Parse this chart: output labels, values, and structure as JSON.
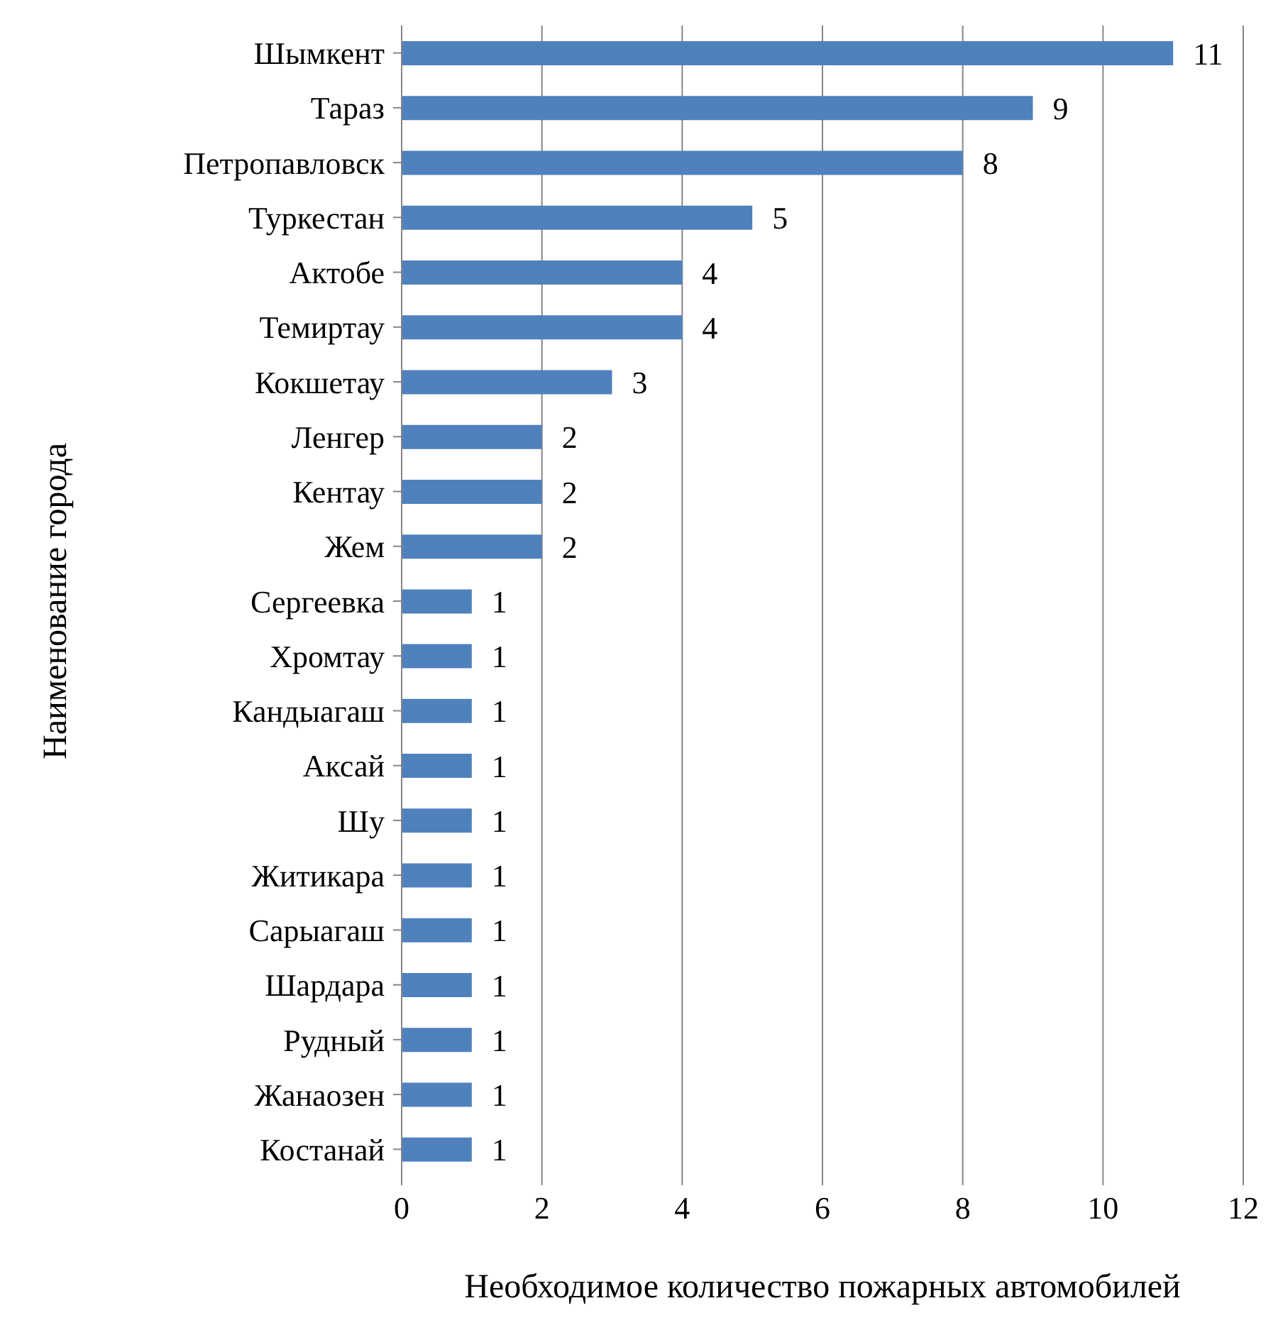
{
  "chart_data": {
    "type": "bar",
    "orientation": "horizontal",
    "xlabel": "Необходимое количество пожарных автомобилей",
    "ylabel": "Наименование города",
    "categories": [
      "Шымкент",
      "Тараз",
      "Петропавловск",
      "Туркестан",
      "Актобе",
      "Темиртау",
      "Кокшетау",
      "Ленгер",
      "Кентау",
      "Жем",
      "Сергеевка",
      "Хромтау",
      "Кандыагаш",
      "Аксай",
      "Шу",
      "Житикара",
      "Сарыагаш",
      "Шардара",
      "Рудный",
      "Жанаозен",
      "Костанай"
    ],
    "values": [
      11,
      9,
      8,
      5,
      4,
      4,
      3,
      2,
      2,
      2,
      1,
      1,
      1,
      1,
      1,
      1,
      1,
      1,
      1,
      1,
      1
    ],
    "color": "#4f81bd",
    "xlim": [
      0,
      12
    ],
    "xticks": [
      0,
      2,
      4,
      6,
      8,
      10,
      12
    ],
    "grid": "x",
    "data_labels": true
  }
}
